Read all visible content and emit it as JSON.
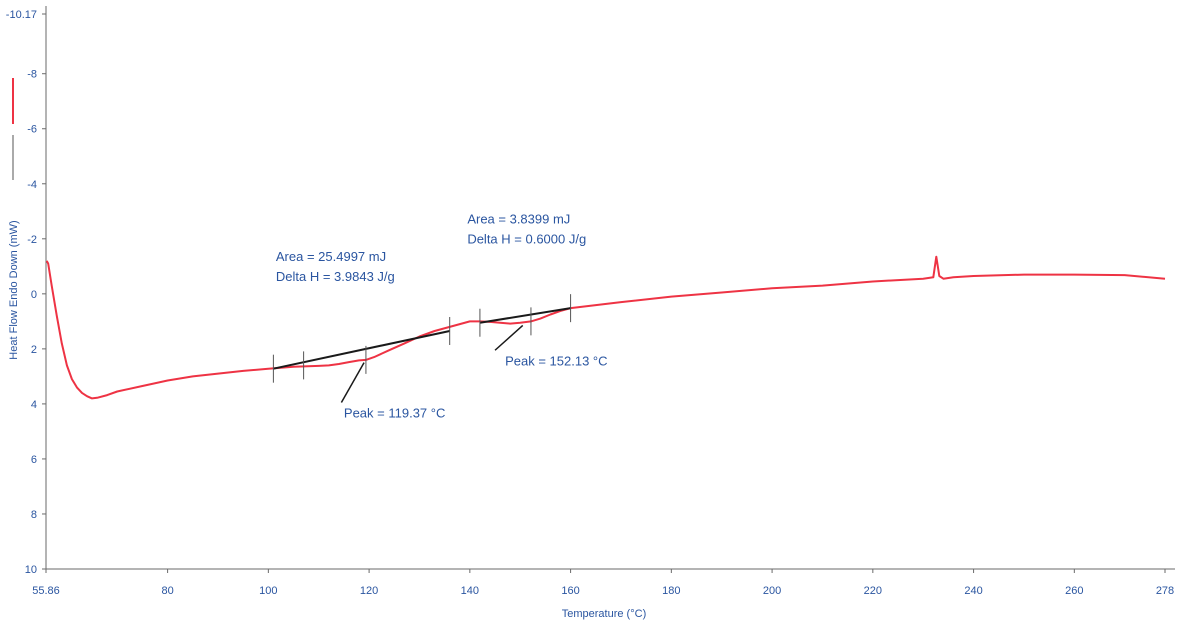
{
  "chart_data": {
    "type": "line",
    "title": "",
    "xlabel": "Temperature (°C)",
    "ylabel": "Heat Flow Endo Down (mW)",
    "xlim": [
      55.86,
      278
    ],
    "ylim": [
      -10.17,
      10
    ],
    "y_inverted": true,
    "grid": false,
    "x_ticks": [
      {
        "value": 55.86,
        "label": "55.86"
      },
      {
        "value": 80,
        "label": "80"
      },
      {
        "value": 100,
        "label": "100"
      },
      {
        "value": 120,
        "label": "120"
      },
      {
        "value": 140,
        "label": "140"
      },
      {
        "value": 160,
        "label": "160"
      },
      {
        "value": 180,
        "label": "180"
      },
      {
        "value": 200,
        "label": "200"
      },
      {
        "value": 220,
        "label": "220"
      },
      {
        "value": 240,
        "label": "240"
      },
      {
        "value": 260,
        "label": "260"
      },
      {
        "value": 278,
        "label": "278"
      }
    ],
    "y_ticks": [
      {
        "value": -10.17,
        "label": "-10.17"
      },
      {
        "value": -8,
        "label": "-8"
      },
      {
        "value": -6,
        "label": "-6"
      },
      {
        "value": -4,
        "label": "-4"
      },
      {
        "value": -2,
        "label": "-2"
      },
      {
        "value": 0,
        "label": "0"
      },
      {
        "value": 2,
        "label": "2"
      },
      {
        "value": 4,
        "label": "4"
      },
      {
        "value": 6,
        "label": "6"
      },
      {
        "value": 8,
        "label": "8"
      },
      {
        "value": 10,
        "label": "10"
      }
    ],
    "series": [
      {
        "color": "#ee3344",
        "x": [
          56,
          56.3,
          57,
          58,
          59,
          60,
          61,
          62,
          63,
          64,
          65,
          66,
          68,
          70,
          75,
          80,
          85,
          90,
          95,
          100,
          105,
          110,
          112,
          114,
          116,
          118,
          119.37,
          121,
          124,
          127,
          130,
          133,
          136,
          138,
          140,
          142,
          144,
          146,
          148,
          150,
          152.13,
          154,
          156,
          158,
          160,
          170,
          180,
          190,
          200,
          210,
          220,
          225,
          230,
          232,
          232.6,
          233.2,
          234,
          236,
          240,
          250,
          260,
          270,
          278
        ],
        "y": [
          -1.2,
          -1.1,
          -0.3,
          0.8,
          1.8,
          2.6,
          3.1,
          3.4,
          3.6,
          3.72,
          3.8,
          3.78,
          3.68,
          3.55,
          3.35,
          3.15,
          3.0,
          2.9,
          2.8,
          2.72,
          2.65,
          2.62,
          2.6,
          2.55,
          2.48,
          2.42,
          2.4,
          2.3,
          2.05,
          1.8,
          1.55,
          1.35,
          1.2,
          1.1,
          1.0,
          1.0,
          1.02,
          1.05,
          1.08,
          1.05,
          1.0,
          0.9,
          0.75,
          0.62,
          0.52,
          0.3,
          0.1,
          -0.05,
          -0.2,
          -0.3,
          -0.45,
          -0.5,
          -0.55,
          -0.6,
          -1.35,
          -0.65,
          -0.55,
          -0.6,
          -0.65,
          -0.7,
          -0.7,
          -0.68,
          -0.55
        ]
      }
    ],
    "baselines": [
      {
        "x": [
          101,
          136
        ],
        "y": [
          2.72,
          1.35
        ],
        "color": "#1a1a1a"
      },
      {
        "x": [
          142,
          160
        ],
        "y": [
          1.05,
          0.52
        ],
        "color": "#1a1a1a"
      }
    ],
    "markers": [
      {
        "x": 101,
        "y": 2.72
      },
      {
        "x": 107,
        "y": 2.6
      },
      {
        "x": 119.37,
        "y": 2.4
      },
      {
        "x": 136,
        "y": 1.35
      },
      {
        "x": 142,
        "y": 1.05
      },
      {
        "x": 152.13,
        "y": 1.0
      },
      {
        "x": 160,
        "y": 0.52
      }
    ],
    "annotations": [
      {
        "lines": [
          "Area = 25.4997 mJ",
          "Delta H = 3.9843 J/g"
        ],
        "x": 101.5,
        "y": -1.2
      },
      {
        "lines": [
          "Area = 3.8399 mJ",
          "Delta H = 0.6000 J/g"
        ],
        "x": 139.5,
        "y": -2.55
      },
      {
        "lines": [
          "Peak = 119.37 °C"
        ],
        "x": 115,
        "y": 4.5,
        "arrow_from": [
          114.5,
          3.95
        ],
        "arrow_to": [
          119.0,
          2.5
        ]
      },
      {
        "lines": [
          "Peak = 152.13 °C"
        ],
        "x": 147,
        "y": 2.6,
        "arrow_from": [
          145.0,
          2.05
        ],
        "arrow_to": [
          150.5,
          1.15
        ]
      }
    ]
  }
}
